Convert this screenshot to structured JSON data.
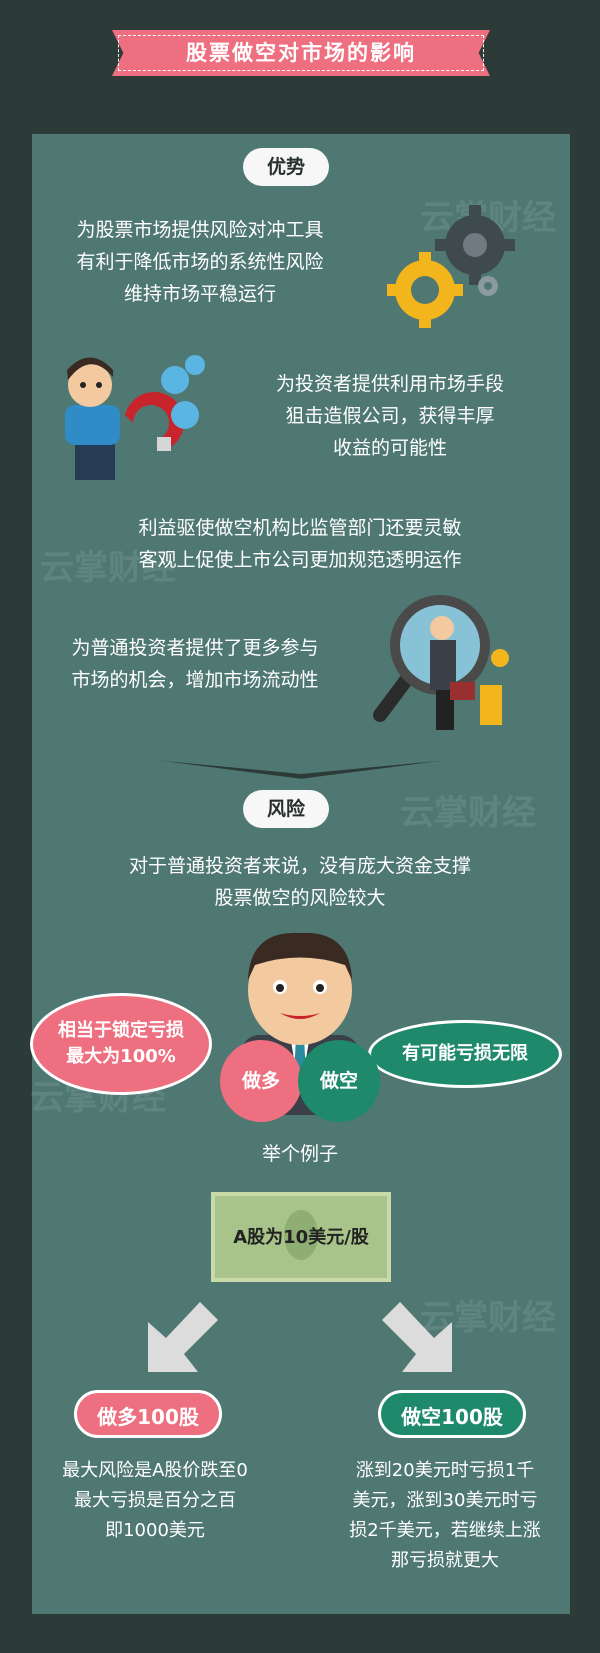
{
  "header": {
    "title": "股票做空对市场的影响"
  },
  "advantages": {
    "label": "优势",
    "items": [
      "为股票市场提供风险对冲工具\n有利于降低市场的系统性风险\n维持市场平稳运行",
      "为投资者提供利用市场手段\n狙击造假公司，获得丰厚\n收益的可能性",
      "利益驱使做空机构比监管部门还要灵敏\n客观上促使上市公司更加规范透明运作",
      "为普通投资者提供了更多参与\n市场的机会，增加市场流动性"
    ]
  },
  "risk": {
    "label": "风险",
    "intro": "对于普通投资者来说，没有庞大资金支撑\n股票做空的风险较大",
    "long_bubble": "相当于锁定亏损\n最大为100%",
    "short_bubble": "有可能亏损无限",
    "long_bag": "做多",
    "short_bag": "做空",
    "example_label": "举个例子",
    "banknote": "A股为10美元/股",
    "long_case": {
      "label": "做多100股",
      "text": "最大风险是A股价跌至0\n最大亏损是百分之百\n即1000美元"
    },
    "short_case": {
      "label": "做空100股",
      "text": "涨到20美元时亏损1千\n美元，涨到30美元时亏\n损2千美元，若继续上涨\n那亏损就更大"
    }
  },
  "watermark": "云掌财经",
  "colors": {
    "background": "#2c3b37",
    "panel": "#4f7872",
    "accent_pink": "#ee6f7f",
    "accent_green": "#1f8a6b",
    "pill_bg": "#f7f7f7"
  },
  "icons": [
    "gears-icon",
    "magnet-man-icon",
    "magnifier-man-icon",
    "money-bag-icon",
    "arrow-down-left-icon",
    "arrow-down-right-icon",
    "banknote-icon"
  ]
}
